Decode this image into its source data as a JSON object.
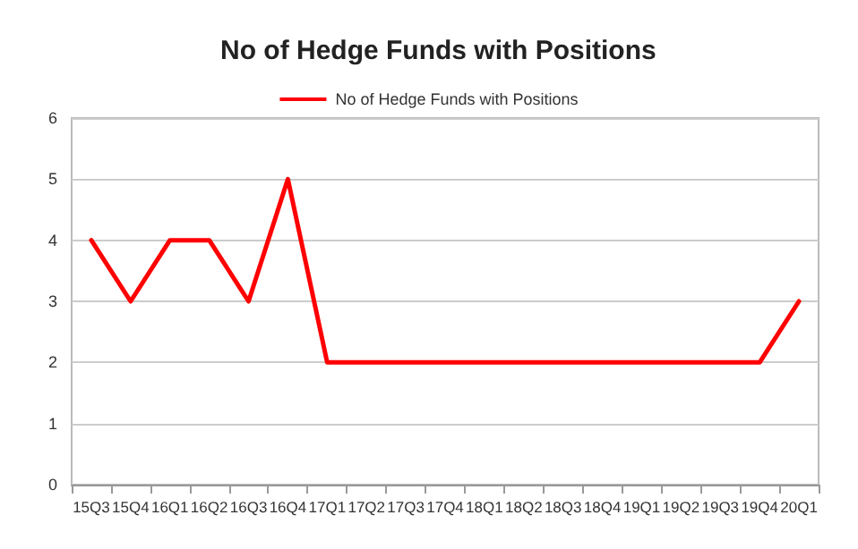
{
  "chart_data": {
    "type": "line",
    "title": "No of Hedge Funds with Positions",
    "categories": [
      "15Q3",
      "15Q4",
      "16Q1",
      "16Q2",
      "16Q3",
      "16Q4",
      "17Q1",
      "17Q2",
      "17Q3",
      "17Q4",
      "18Q1",
      "18Q2",
      "18Q3",
      "18Q4",
      "19Q1",
      "19Q2",
      "19Q3",
      "19Q4",
      "20Q1"
    ],
    "series": [
      {
        "name": "No of Hedge Funds with Positions",
        "color": "#ff0000",
        "values": [
          4,
          3,
          4,
          4,
          3,
          5,
          2,
          2,
          2,
          2,
          2,
          2,
          2,
          2,
          2,
          2,
          2,
          2,
          3
        ]
      }
    ],
    "ylim": [
      0,
      6
    ],
    "yticks": [
      0,
      1,
      2,
      3,
      4,
      5,
      6
    ],
    "grid": "y",
    "legend": "top",
    "marker": "none",
    "line_style": "solid"
  }
}
